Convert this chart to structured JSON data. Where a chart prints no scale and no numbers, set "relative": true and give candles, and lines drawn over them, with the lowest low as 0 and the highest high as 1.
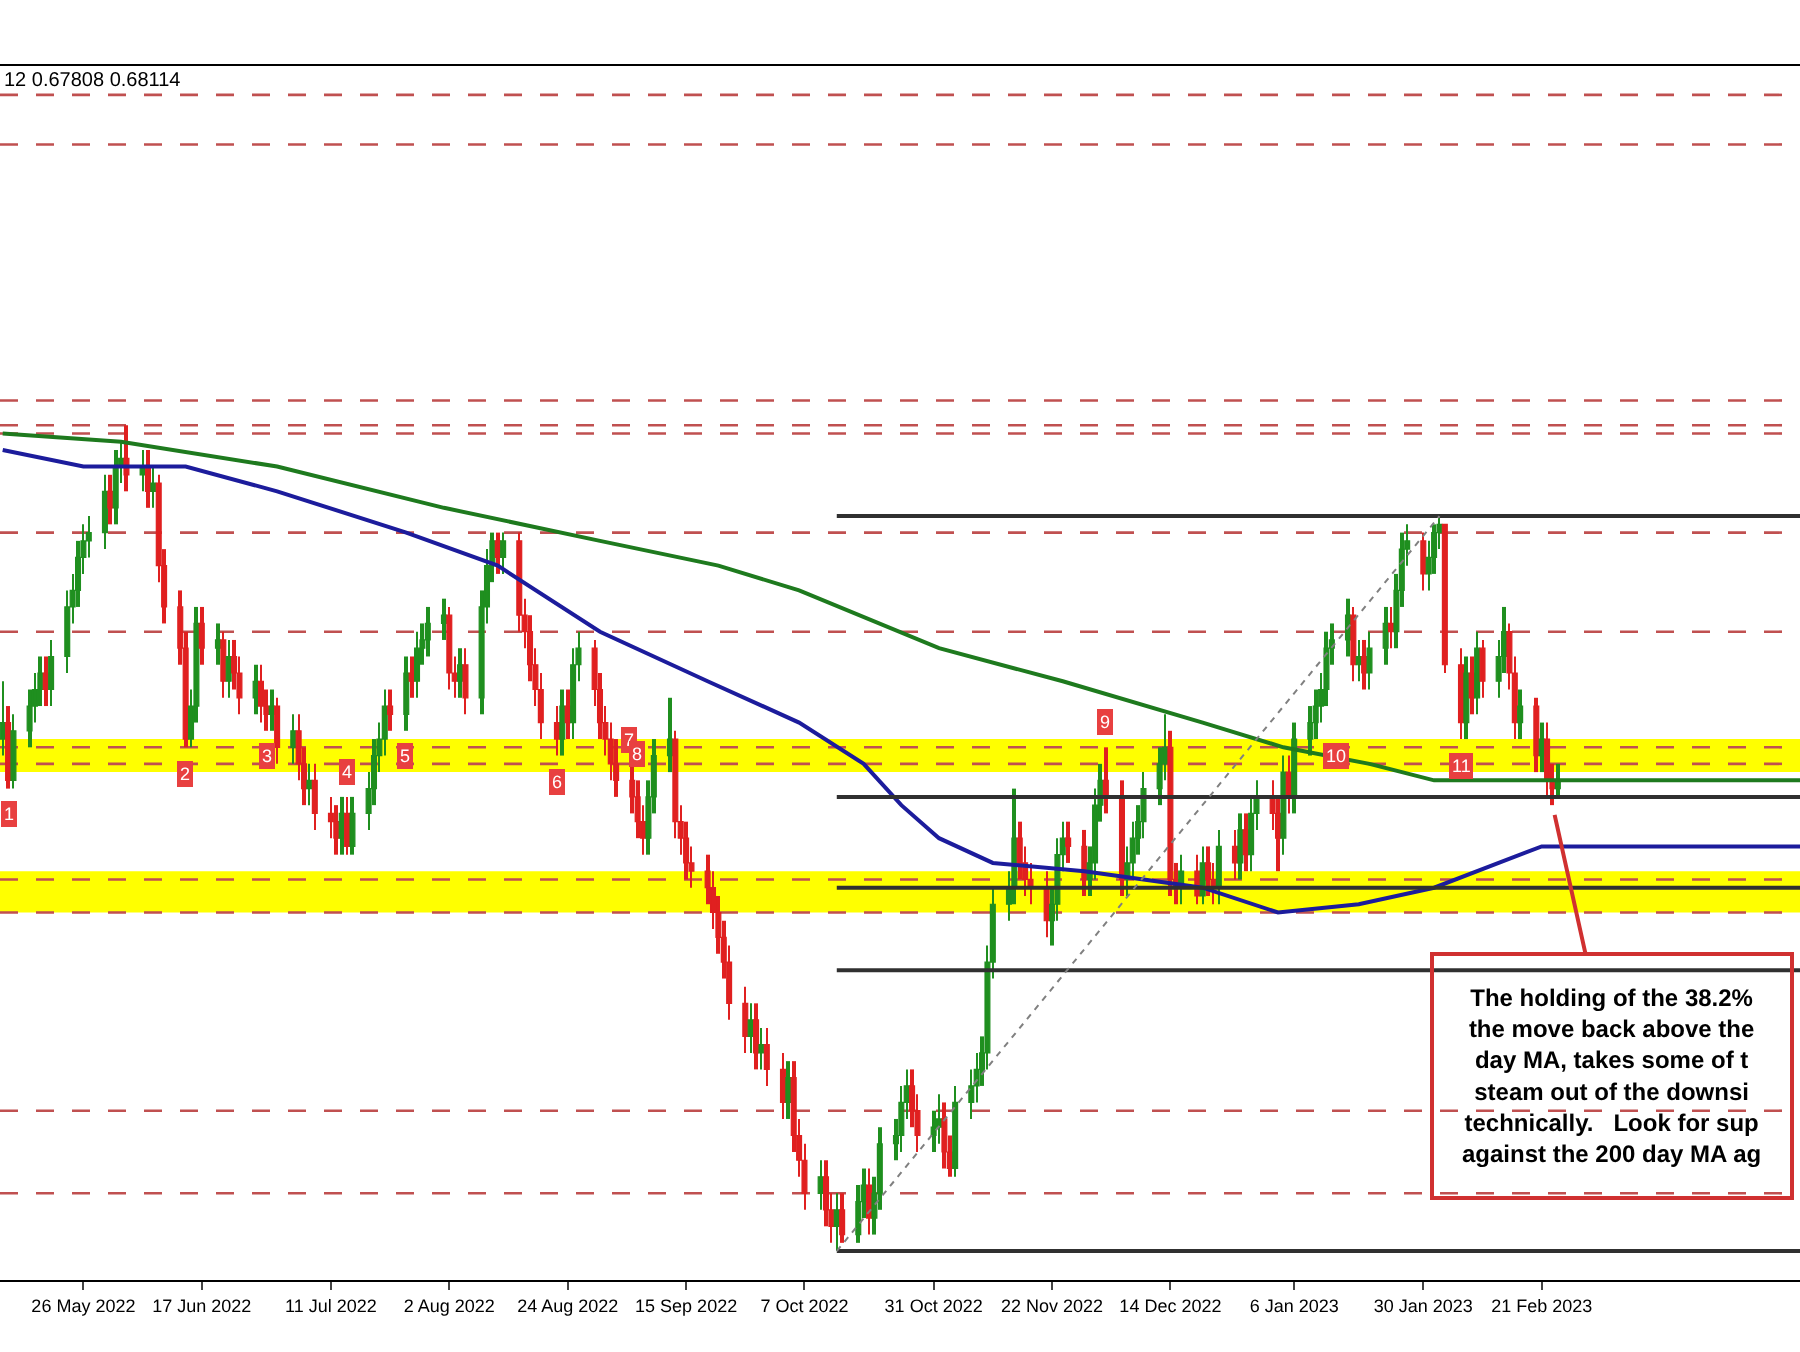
{
  "chart_data": {
    "type": "candlestick",
    "relative": true,
    "x": [
      "2022-05-11",
      "2022-05-12",
      "2022-05-13",
      "2022-05-16",
      "2022-05-17",
      "2022-05-18",
      "2022-05-19",
      "2022-05-20",
      "2022-05-23",
      "2022-05-24",
      "2022-05-25",
      "2022-05-26",
      "2022-05-27",
      "2022-05-30",
      "2022-05-31",
      "2022-06-01",
      "2022-06-02",
      "2022-06-03",
      "2022-06-06",
      "2022-06-07",
      "2022-06-08",
      "2022-06-09",
      "2022-06-10",
      "2022-06-13",
      "2022-06-14",
      "2022-06-15",
      "2022-06-16",
      "2022-06-17",
      "2022-06-20",
      "2022-06-21",
      "2022-06-22",
      "2022-06-23",
      "2022-06-24",
      "2022-06-27",
      "2022-06-28",
      "2022-06-29",
      "2022-06-30",
      "2022-07-01",
      "2022-07-04",
      "2022-07-05",
      "2022-07-06",
      "2022-07-07",
      "2022-07-08",
      "2022-07-11",
      "2022-07-12",
      "2022-07-13",
      "2022-07-14",
      "2022-07-15",
      "2022-07-18",
      "2022-07-19",
      "2022-07-20",
      "2022-07-21",
      "2022-07-22",
      "2022-07-25",
      "2022-07-26",
      "2022-07-27",
      "2022-07-28",
      "2022-07-29",
      "2022-08-01",
      "2022-08-02",
      "2022-08-03",
      "2022-08-04",
      "2022-08-05",
      "2022-08-08",
      "2022-08-09",
      "2022-08-10",
      "2022-08-11",
      "2022-08-12",
      "2022-08-15",
      "2022-08-16",
      "2022-08-17",
      "2022-08-18",
      "2022-08-19",
      "2022-08-22",
      "2022-08-23",
      "2022-08-24",
      "2022-08-25",
      "2022-08-26",
      "2022-08-29",
      "2022-08-30",
      "2022-08-31",
      "2022-09-01",
      "2022-09-02",
      "2022-09-05",
      "2022-09-06",
      "2022-09-07",
      "2022-09-08",
      "2022-09-09",
      "2022-09-12",
      "2022-09-13",
      "2022-09-14",
      "2022-09-15",
      "2022-09-16",
      "2022-09-19",
      "2022-09-20",
      "2022-09-21",
      "2022-09-22",
      "2022-09-23",
      "2022-09-26",
      "2022-09-27",
      "2022-09-28",
      "2022-09-29",
      "2022-09-30",
      "2022-10-03",
      "2022-10-04",
      "2022-10-05",
      "2022-10-06",
      "2022-10-07",
      "2022-10-10",
      "2022-10-11",
      "2022-10-12",
      "2022-10-13",
      "2022-10-14",
      "2022-10-17",
      "2022-10-18",
      "2022-10-19",
      "2022-10-20",
      "2022-10-21",
      "2022-10-24",
      "2022-10-25",
      "2022-10-26",
      "2022-10-27",
      "2022-10-28",
      "2022-10-31",
      "2022-11-01",
      "2022-11-02",
      "2022-11-03",
      "2022-11-04",
      "2022-11-07",
      "2022-11-08",
      "2022-11-09",
      "2022-11-10",
      "2022-11-11",
      "2022-11-14",
      "2022-11-15",
      "2022-11-16",
      "2022-11-17",
      "2022-11-18",
      "2022-11-21",
      "2022-11-22",
      "2022-11-23",
      "2022-11-24",
      "2022-11-25",
      "2022-11-28",
      "2022-11-29",
      "2022-11-30",
      "2022-12-01",
      "2022-12-02",
      "2022-12-05",
      "2022-12-06",
      "2022-12-07",
      "2022-12-08",
      "2022-12-09",
      "2022-12-12",
      "2022-12-13",
      "2022-12-14",
      "2022-12-15",
      "2022-12-16",
      "2022-12-19",
      "2022-12-20",
      "2022-12-21",
      "2022-12-22",
      "2022-12-23",
      "2022-12-26",
      "2022-12-27",
      "2022-12-28",
      "2022-12-29",
      "2022-12-30",
      "2023-01-02",
      "2023-01-03",
      "2023-01-04",
      "2023-01-05",
      "2023-01-06",
      "2023-01-09",
      "2023-01-10",
      "2023-01-11",
      "2023-01-12",
      "2023-01-13",
      "2023-01-16",
      "2023-01-17",
      "2023-01-18",
      "2023-01-19",
      "2023-01-20",
      "2023-01-23",
      "2023-01-24",
      "2023-01-25",
      "2023-01-26",
      "2023-01-27",
      "2023-01-30",
      "2023-01-31",
      "2023-02-01",
      "2023-02-02",
      "2023-02-03",
      "2023-02-06",
      "2023-02-07",
      "2023-02-08",
      "2023-02-09",
      "2023-02-10",
      "2023-02-13",
      "2023-02-14",
      "2023-02-15",
      "2023-02-16",
      "2023-02-17",
      "2023-02-20",
      "2023-02-21",
      "2023-02-22",
      "2023-02-23",
      "2023-02-24"
    ],
    "ohlc": [
      [
        0.62,
        0.69,
        0.6,
        0.64
      ],
      [
        0.64,
        0.66,
        0.56,
        0.57
      ],
      [
        0.57,
        0.65,
        0.56,
        0.63
      ],
      [
        0.63,
        0.68,
        0.61,
        0.66
      ],
      [
        0.66,
        0.7,
        0.64,
        0.68
      ],
      [
        0.68,
        0.72,
        0.66,
        0.7
      ],
      [
        0.7,
        0.72,
        0.66,
        0.68
      ],
      [
        0.68,
        0.74,
        0.66,
        0.72
      ],
      [
        0.72,
        0.8,
        0.7,
        0.78
      ],
      [
        0.78,
        0.82,
        0.76,
        0.8
      ],
      [
        0.8,
        0.86,
        0.78,
        0.84
      ],
      [
        0.84,
        0.88,
        0.82,
        0.86
      ],
      [
        0.86,
        0.89,
        0.84,
        0.87
      ],
      [
        0.87,
        0.94,
        0.85,
        0.92
      ],
      [
        0.92,
        0.94,
        0.88,
        0.9
      ],
      [
        0.9,
        0.97,
        0.88,
        0.95
      ],
      [
        0.95,
        0.98,
        0.93,
        0.96
      ],
      [
        0.96,
        1.0,
        0.92,
        0.94
      ],
      [
        0.94,
        0.97,
        0.92,
        0.95
      ],
      [
        0.95,
        0.97,
        0.9,
        0.92
      ],
      [
        0.92,
        0.95,
        0.9,
        0.93
      ],
      [
        0.93,
        0.94,
        0.81,
        0.83
      ],
      [
        0.83,
        0.85,
        0.76,
        0.78
      ],
      [
        0.78,
        0.8,
        0.71,
        0.73
      ],
      [
        0.73,
        0.75,
        0.61,
        0.62
      ],
      [
        0.62,
        0.68,
        0.61,
        0.66
      ],
      [
        0.66,
        0.78,
        0.64,
        0.76
      ],
      [
        0.76,
        0.78,
        0.71,
        0.73
      ],
      [
        0.73,
        0.76,
        0.71,
        0.74
      ],
      [
        0.74,
        0.75,
        0.67,
        0.69
      ],
      [
        0.69,
        0.74,
        0.67,
        0.72
      ],
      [
        0.72,
        0.74,
        0.68,
        0.7
      ],
      [
        0.7,
        0.72,
        0.65,
        0.67
      ],
      [
        0.67,
        0.71,
        0.65,
        0.69
      ],
      [
        0.69,
        0.71,
        0.64,
        0.66
      ],
      [
        0.66,
        0.68,
        0.63,
        0.65
      ],
      [
        0.65,
        0.68,
        0.63,
        0.66
      ],
      [
        0.66,
        0.67,
        0.59,
        0.61
      ],
      [
        0.61,
        0.65,
        0.59,
        0.63
      ],
      [
        0.63,
        0.65,
        0.57,
        0.59
      ],
      [
        0.59,
        0.61,
        0.54,
        0.56
      ],
      [
        0.56,
        0.59,
        0.54,
        0.57
      ],
      [
        0.57,
        0.59,
        0.51,
        0.53
      ],
      [
        0.53,
        0.55,
        0.5,
        0.52
      ],
      [
        0.52,
        0.54,
        0.48,
        0.5
      ],
      [
        0.5,
        0.55,
        0.48,
        0.53
      ],
      [
        0.53,
        0.55,
        0.48,
        0.49
      ],
      [
        0.49,
        0.55,
        0.48,
        0.53
      ],
      [
        0.53,
        0.58,
        0.51,
        0.56
      ],
      [
        0.56,
        0.62,
        0.54,
        0.6
      ],
      [
        0.6,
        0.64,
        0.58,
        0.62
      ],
      [
        0.62,
        0.68,
        0.6,
        0.66
      ],
      [
        0.66,
        0.68,
        0.63,
        0.65
      ],
      [
        0.65,
        0.72,
        0.63,
        0.7
      ],
      [
        0.7,
        0.72,
        0.67,
        0.69
      ],
      [
        0.69,
        0.75,
        0.67,
        0.73
      ],
      [
        0.73,
        0.76,
        0.71,
        0.74
      ],
      [
        0.74,
        0.78,
        0.72,
        0.76
      ],
      [
        0.76,
        0.79,
        0.74,
        0.77
      ],
      [
        0.77,
        0.78,
        0.68,
        0.7
      ],
      [
        0.7,
        0.72,
        0.67,
        0.69
      ],
      [
        0.69,
        0.73,
        0.67,
        0.71
      ],
      [
        0.71,
        0.73,
        0.65,
        0.67
      ],
      [
        0.67,
        0.8,
        0.65,
        0.78
      ],
      [
        0.78,
        0.85,
        0.76,
        0.83
      ],
      [
        0.83,
        0.87,
        0.81,
        0.86
      ],
      [
        0.86,
        0.87,
        0.82,
        0.84
      ],
      [
        0.84,
        0.87,
        0.82,
        0.86
      ],
      [
        0.86,
        0.87,
        0.75,
        0.77
      ],
      [
        0.77,
        0.79,
        0.73,
        0.75
      ],
      [
        0.75,
        0.77,
        0.69,
        0.71
      ],
      [
        0.71,
        0.73,
        0.66,
        0.68
      ],
      [
        0.68,
        0.7,
        0.62,
        0.64
      ],
      [
        0.64,
        0.66,
        0.6,
        0.62
      ],
      [
        0.62,
        0.68,
        0.6,
        0.66
      ],
      [
        0.66,
        0.68,
        0.62,
        0.64
      ],
      [
        0.64,
        0.73,
        0.62,
        0.71
      ],
      [
        0.71,
        0.75,
        0.69,
        0.73
      ],
      [
        0.73,
        0.74,
        0.66,
        0.68
      ],
      [
        0.68,
        0.7,
        0.62,
        0.64
      ],
      [
        0.64,
        0.66,
        0.6,
        0.62
      ],
      [
        0.62,
        0.64,
        0.57,
        0.59
      ],
      [
        0.59,
        0.62,
        0.55,
        0.57
      ],
      [
        0.57,
        0.59,
        0.53,
        0.55
      ],
      [
        0.55,
        0.57,
        0.5,
        0.52
      ],
      [
        0.52,
        0.54,
        0.48,
        0.5
      ],
      [
        0.5,
        0.57,
        0.48,
        0.55
      ],
      [
        0.55,
        0.62,
        0.53,
        0.6
      ],
      [
        0.6,
        0.67,
        0.58,
        0.62
      ],
      [
        0.62,
        0.63,
        0.5,
        0.52
      ],
      [
        0.52,
        0.54,
        0.48,
        0.5
      ],
      [
        0.5,
        0.52,
        0.45,
        0.47
      ],
      [
        0.47,
        0.49,
        0.44,
        0.46
      ],
      [
        0.46,
        0.48,
        0.42,
        0.44
      ],
      [
        0.44,
        0.46,
        0.39,
        0.41
      ],
      [
        0.41,
        0.43,
        0.36,
        0.38
      ],
      [
        0.38,
        0.4,
        0.33,
        0.35
      ],
      [
        0.35,
        0.37,
        0.28,
        0.3
      ],
      [
        0.3,
        0.32,
        0.24,
        0.26
      ],
      [
        0.26,
        0.3,
        0.24,
        0.28
      ],
      [
        0.28,
        0.3,
        0.22,
        0.24
      ],
      [
        0.24,
        0.27,
        0.22,
        0.25
      ],
      [
        0.25,
        0.27,
        0.2,
        0.22
      ],
      [
        0.22,
        0.24,
        0.16,
        0.18
      ],
      [
        0.18,
        0.23,
        0.16,
        0.21
      ],
      [
        0.21,
        0.23,
        0.12,
        0.14
      ],
      [
        0.14,
        0.16,
        0.09,
        0.11
      ],
      [
        0.11,
        0.13,
        0.05,
        0.07
      ],
      [
        0.07,
        0.11,
        0.05,
        0.09
      ],
      [
        0.09,
        0.11,
        0.03,
        0.05
      ],
      [
        0.05,
        0.07,
        0.01,
        0.03
      ],
      [
        0.03,
        0.07,
        0.0,
        0.05
      ],
      [
        0.05,
        0.07,
        0.01,
        0.02
      ],
      [
        0.02,
        0.08,
        0.01,
        0.06
      ],
      [
        0.06,
        0.1,
        0.04,
        0.08
      ],
      [
        0.08,
        0.1,
        0.02,
        0.04
      ],
      [
        0.04,
        0.09,
        0.02,
        0.07
      ],
      [
        0.07,
        0.15,
        0.05,
        0.13
      ],
      [
        0.13,
        0.16,
        0.11,
        0.14
      ],
      [
        0.14,
        0.2,
        0.12,
        0.18
      ],
      [
        0.18,
        0.22,
        0.16,
        0.2
      ],
      [
        0.2,
        0.22,
        0.15,
        0.17
      ],
      [
        0.17,
        0.19,
        0.12,
        0.14
      ],
      [
        0.14,
        0.17,
        0.12,
        0.15
      ],
      [
        0.15,
        0.19,
        0.13,
        0.16
      ],
      [
        0.16,
        0.18,
        0.1,
        0.12
      ],
      [
        0.12,
        0.14,
        0.09,
        0.1
      ],
      [
        0.1,
        0.2,
        0.09,
        0.18
      ],
      [
        0.18,
        0.22,
        0.16,
        0.2
      ],
      [
        0.2,
        0.24,
        0.18,
        0.22
      ],
      [
        0.22,
        0.26,
        0.2,
        0.24
      ],
      [
        0.24,
        0.37,
        0.22,
        0.35
      ],
      [
        0.35,
        0.44,
        0.33,
        0.42
      ],
      [
        0.42,
        0.46,
        0.4,
        0.44
      ],
      [
        0.44,
        0.56,
        0.42,
        0.5
      ],
      [
        0.5,
        0.52,
        0.45,
        0.47
      ],
      [
        0.47,
        0.49,
        0.43,
        0.45
      ],
      [
        0.45,
        0.47,
        0.42,
        0.44
      ],
      [
        0.44,
        0.46,
        0.38,
        0.4
      ],
      [
        0.4,
        0.44,
        0.37,
        0.42
      ],
      [
        0.42,
        0.5,
        0.4,
        0.48
      ],
      [
        0.48,
        0.52,
        0.46,
        0.5
      ],
      [
        0.5,
        0.52,
        0.47,
        0.49
      ],
      [
        0.49,
        0.51,
        0.43,
        0.45
      ],
      [
        0.45,
        0.49,
        0.43,
        0.47
      ],
      [
        0.47,
        0.56,
        0.45,
        0.54
      ],
      [
        0.54,
        0.59,
        0.52,
        0.57
      ],
      [
        0.57,
        0.61,
        0.53,
        0.55
      ],
      [
        0.55,
        0.57,
        0.43,
        0.45
      ],
      [
        0.45,
        0.49,
        0.43,
        0.47
      ],
      [
        0.47,
        0.52,
        0.45,
        0.5
      ],
      [
        0.5,
        0.54,
        0.48,
        0.52
      ],
      [
        0.52,
        0.58,
        0.5,
        0.56
      ],
      [
        0.56,
        0.61,
        0.54,
        0.59
      ],
      [
        0.59,
        0.65,
        0.57,
        0.61
      ],
      [
        0.61,
        0.63,
        0.43,
        0.45
      ],
      [
        0.45,
        0.47,
        0.42,
        0.44
      ],
      [
        0.44,
        0.48,
        0.42,
        0.46
      ],
      [
        0.46,
        0.48,
        0.42,
        0.43
      ],
      [
        0.43,
        0.49,
        0.42,
        0.47
      ],
      [
        0.47,
        0.49,
        0.43,
        0.45
      ],
      [
        0.45,
        0.47,
        0.42,
        0.44
      ],
      [
        0.44,
        0.51,
        0.42,
        0.49
      ],
      [
        0.49,
        0.51,
        0.45,
        0.47
      ],
      [
        0.47,
        0.53,
        0.45,
        0.51
      ],
      [
        0.51,
        0.53,
        0.46,
        0.48
      ],
      [
        0.48,
        0.55,
        0.46,
        0.53
      ],
      [
        0.53,
        0.57,
        0.51,
        0.55
      ],
      [
        0.55,
        0.57,
        0.51,
        0.53
      ],
      [
        0.53,
        0.55,
        0.46,
        0.5
      ],
      [
        0.5,
        0.6,
        0.48,
        0.58
      ],
      [
        0.58,
        0.6,
        0.53,
        0.55
      ],
      [
        0.55,
        0.64,
        0.53,
        0.62
      ],
      [
        0.62,
        0.66,
        0.6,
        0.64
      ],
      [
        0.64,
        0.68,
        0.62,
        0.66
      ],
      [
        0.66,
        0.7,
        0.64,
        0.68
      ],
      [
        0.68,
        0.75,
        0.66,
        0.73
      ],
      [
        0.73,
        0.76,
        0.71,
        0.74
      ],
      [
        0.74,
        0.79,
        0.72,
        0.77
      ],
      [
        0.77,
        0.78,
        0.69,
        0.71
      ],
      [
        0.71,
        0.74,
        0.69,
        0.72
      ],
      [
        0.72,
        0.74,
        0.68,
        0.7
      ],
      [
        0.7,
        0.75,
        0.68,
        0.73
      ],
      [
        0.73,
        0.78,
        0.71,
        0.76
      ],
      [
        0.76,
        0.78,
        0.73,
        0.75
      ],
      [
        0.75,
        0.82,
        0.73,
        0.8
      ],
      [
        0.8,
        0.87,
        0.78,
        0.85
      ],
      [
        0.85,
        0.88,
        0.83,
        0.86
      ],
      [
        0.86,
        0.87,
        0.8,
        0.82
      ],
      [
        0.82,
        0.86,
        0.8,
        0.84
      ],
      [
        0.84,
        0.88,
        0.82,
        0.87
      ],
      [
        0.87,
        0.89,
        0.85,
        0.88
      ],
      [
        0.88,
        0.88,
        0.7,
        0.71
      ],
      [
        0.71,
        0.73,
        0.62,
        0.64
      ],
      [
        0.64,
        0.72,
        0.62,
        0.7
      ],
      [
        0.7,
        0.72,
        0.65,
        0.67
      ],
      [
        0.67,
        0.75,
        0.65,
        0.73
      ],
      [
        0.73,
        0.74,
        0.67,
        0.69
      ],
      [
        0.69,
        0.74,
        0.67,
        0.72
      ],
      [
        0.72,
        0.78,
        0.7,
        0.75
      ],
      [
        0.75,
        0.76,
        0.68,
        0.7
      ],
      [
        0.7,
        0.72,
        0.62,
        0.64
      ],
      [
        0.64,
        0.68,
        0.62,
        0.66
      ],
      [
        0.66,
        0.67,
        0.58,
        0.6
      ],
      [
        0.6,
        0.64,
        0.58,
        0.62
      ],
      [
        0.62,
        0.64,
        0.55,
        0.57
      ],
      [
        0.57,
        0.59,
        0.54,
        0.56
      ],
      [
        0.56,
        0.59,
        0.55,
        0.57
      ]
    ],
    "series": [
      {
        "type": "line",
        "color": "#1e7a1e",
        "x": [
          "2022-05-11",
          "2022-06-02",
          "2022-07-01",
          "2022-08-01",
          "2022-08-30",
          "2022-09-21",
          "2022-10-06",
          "2022-11-01",
          "2022-11-24",
          "2022-12-20",
          "2023-01-04",
          "2023-01-20",
          "2023-02-01",
          "2023-02-22",
          "2023-04-10"
        ],
        "values": [
          0.99,
          0.98,
          0.95,
          0.9,
          0.86,
          0.83,
          0.8,
          0.73,
          0.69,
          0.64,
          0.61,
          0.59,
          0.57,
          0.57,
          0.57
        ]
      },
      {
        "type": "line",
        "color": "#1c1c9c",
        "x": [
          "2022-05-11",
          "2022-05-26",
          "2022-06-14",
          "2022-07-01",
          "2022-07-25",
          "2022-08-11",
          "2022-08-30",
          "2022-09-19",
          "2022-10-06",
          "2022-10-18",
          "2022-10-25",
          "2022-11-01",
          "2022-11-11",
          "2022-11-28",
          "2022-12-20",
          "2023-01-03",
          "2023-01-18",
          "2023-02-01",
          "2023-02-13",
          "2023-02-21",
          "2023-04-10"
        ],
        "values": [
          0.97,
          0.95,
          0.95,
          0.92,
          0.87,
          0.83,
          0.75,
          0.69,
          0.64,
          0.59,
          0.54,
          0.5,
          0.47,
          0.46,
          0.44,
          0.41,
          0.42,
          0.44,
          0.47,
          0.49,
          0.49
        ]
      },
      {
        "type": "line",
        "color": "#303030",
        "x": [
          "2022-10-13",
          "2023-04-10"
        ],
        "values": [
          0.89,
          0.89
        ]
      },
      {
        "type": "line",
        "color": "#303030",
        "x": [
          "2022-10-13",
          "2023-04-10"
        ],
        "values": [
          0.55,
          0.55
        ]
      },
      {
        "type": "line",
        "color": "#303030",
        "x": [
          "2022-10-13",
          "2023-04-10"
        ],
        "values": [
          0.44,
          0.44
        ]
      },
      {
        "type": "line",
        "color": "#303030",
        "x": [
          "2022-10-13",
          "2023-04-10"
        ],
        "values": [
          0.34,
          0.34
        ]
      },
      {
        "type": "line",
        "color": "#303030",
        "x": [
          "2022-10-13",
          "2023-04-10"
        ],
        "values": [
          0.0,
          0.0
        ]
      },
      {
        "type": "line",
        "color": "#808080",
        "line_style": "dotted",
        "x": [
          "2022-10-13",
          "2023-02-02"
        ],
        "values": [
          0.0,
          0.89
        ]
      }
    ],
    "bands": [
      {
        "axis": "y",
        "from": 0.58,
        "to": 0.62,
        "color": "#ffff00"
      },
      {
        "axis": "y",
        "from": 0.41,
        "to": 0.46,
        "color": "#ffff00"
      }
    ],
    "ref_lines": [
      {
        "axis": "y",
        "value": 1.4,
        "color": "#c05050",
        "line_style": "dashed"
      },
      {
        "axis": "y",
        "value": 1.34,
        "color": "#c05050",
        "line_style": "dashed"
      },
      {
        "axis": "y",
        "value": 1.03,
        "color": "#c05050",
        "line_style": "dashed"
      },
      {
        "axis": "y",
        "value": 1.0,
        "color": "#c05050",
        "line_style": "dashed"
      },
      {
        "axis": "y",
        "value": 0.99,
        "color": "#c05050",
        "line_style": "dashed"
      },
      {
        "axis": "y",
        "value": 0.87,
        "color": "#c05050",
        "line_style": "dashed"
      },
      {
        "axis": "y",
        "value": 0.75,
        "color": "#c05050",
        "line_style": "dashed"
      },
      {
        "axis": "y",
        "value": 0.61,
        "color": "#c05050",
        "line_style": "dashed"
      },
      {
        "axis": "y",
        "value": 0.59,
        "color": "#c05050",
        "line_style": "dashed"
      },
      {
        "axis": "y",
        "value": 0.45,
        "color": "#c05050",
        "line_style": "dashed"
      },
      {
        "axis": "y",
        "value": 0.41,
        "color": "#c05050",
        "line_style": "dashed"
      },
      {
        "axis": "y",
        "value": 0.17,
        "color": "#c05050",
        "line_style": "dashed"
      },
      {
        "axis": "y",
        "value": 0.07,
        "color": "#c05050",
        "line_style": "dashed"
      }
    ],
    "xlim": [
      "2022-05-10T12:00",
      "2023-04-10"
    ],
    "xticks": [
      {
        "value": "2022-05-26",
        "label": "26 May 2022"
      },
      {
        "value": "2022-06-17",
        "label": "17 Jun 2022"
      },
      {
        "value": "2022-07-11",
        "label": "11 Jul 2022"
      },
      {
        "value": "2022-08-02",
        "label": "2 Aug 2022"
      },
      {
        "value": "2022-08-24",
        "label": "24 Aug 2022"
      },
      {
        "value": "2022-09-15",
        "label": "15 Sep 2022"
      },
      {
        "value": "2022-10-07",
        "label": "7 Oct 2022"
      },
      {
        "value": "2022-10-31",
        "label": "31 Oct 2022"
      },
      {
        "value": "2022-11-22",
        "label": "22 Nov 2022"
      },
      {
        "value": "2022-12-14",
        "label": "14 Dec 2022"
      },
      {
        "value": "2023-01-06",
        "label": "6 Jan 2023"
      },
      {
        "value": "2023-01-30",
        "label": "30 Jan 2023"
      },
      {
        "value": "2023-02-21",
        "label": "21 Feb 2023"
      }
    ],
    "annotations": [
      "12 0.67808 0.68114",
      {
        "text": "1",
        "x": "2022-05-12",
        "y": 0.56
      },
      {
        "text": "2",
        "x": "2022-06-14",
        "y": 0.61
      },
      {
        "text": "3",
        "x": "2022-06-29",
        "y": 0.63
      },
      {
        "text": "4",
        "x": "2022-07-18",
        "y": 0.58
      },
      {
        "text": "5",
        "x": "2022-07-21",
        "y": 0.6
      },
      {
        "text": "6",
        "x": "2022-08-22",
        "y": 0.6
      },
      {
        "text": "7",
        "x": "2022-08-30",
        "y": 0.62
      },
      {
        "text": "8",
        "x": "2022-09-06",
        "y": 0.57
      },
      {
        "text": "9",
        "x": "2022-12-02",
        "y": 0.61
      },
      {
        "text": "10",
        "x": "2023-01-09",
        "y": 0.6
      },
      {
        "text": "11",
        "x": "2023-02-06",
        "y": 0.62
      },
      {
        "text": "The holding of the 38.2%\nthe move back above the\nday MA, takes some of t\nsteam out of the downsi\ntechnically.   Look for sup\nagainst the 200 day MA ag",
        "x": "2023-02-23",
        "y": 0.54
      }
    ]
  }
}
